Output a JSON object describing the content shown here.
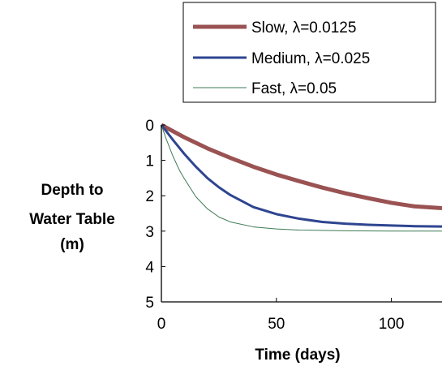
{
  "chart_data": {
    "type": "line",
    "xlabel": "Time (days)",
    "ylabel": [
      "Depth to",
      "Water Table",
      "(m)"
    ],
    "xlim": [
      0,
      122
    ],
    "ylim": [
      0,
      5
    ],
    "y_inverted": true,
    "x_ticks": [
      0,
      50,
      100
    ],
    "y_ticks": [
      0,
      1,
      2,
      3,
      4,
      5
    ],
    "grid": false,
    "legend_position": "top-right",
    "series": [
      {
        "name": "Slow, λ=0.0125",
        "color": "#9a5252",
        "x": [
          0,
          10,
          20,
          30,
          40,
          50,
          60,
          70,
          80,
          90,
          100,
          110,
          122
        ],
        "values": [
          0,
          0.35,
          0.66,
          0.93,
          1.18,
          1.4,
          1.59,
          1.77,
          1.93,
          2.07,
          2.2,
          2.3,
          2.35
        ]
      },
      {
        "name": "Medium, λ=0.025",
        "color": "#2e4590",
        "x": [
          0,
          5,
          10,
          15,
          20,
          25,
          30,
          40,
          50,
          60,
          70,
          80,
          90,
          100,
          110,
          122
        ],
        "values": [
          0,
          0.42,
          0.82,
          1.18,
          1.5,
          1.76,
          1.98,
          2.32,
          2.52,
          2.65,
          2.74,
          2.79,
          2.82,
          2.84,
          2.86,
          2.87
        ]
      },
      {
        "name": "Fast, λ=0.05",
        "color": "#3d7a55",
        "x": [
          0,
          2,
          5,
          8,
          10,
          15,
          20,
          25,
          30,
          40,
          50,
          60,
          80,
          100,
          122
        ],
        "values": [
          0,
          0.38,
          0.88,
          1.3,
          1.52,
          2.03,
          2.37,
          2.6,
          2.74,
          2.88,
          2.94,
          2.97,
          2.99,
          3.0,
          3.0
        ]
      }
    ]
  }
}
